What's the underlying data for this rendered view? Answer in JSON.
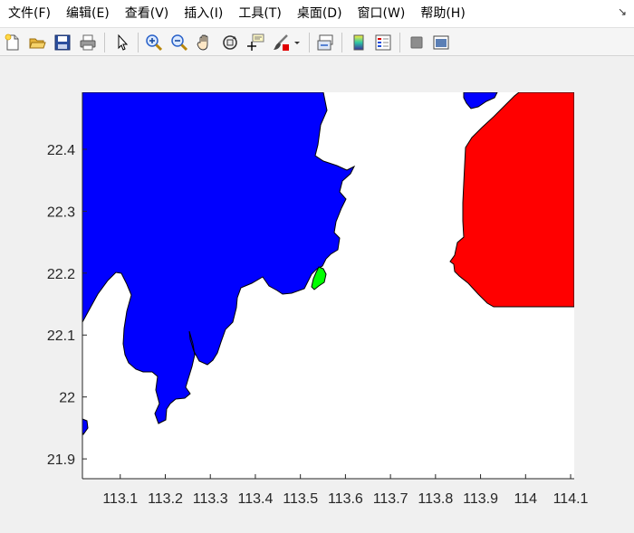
{
  "menu": {
    "items": [
      {
        "id": "file",
        "label": "文件(F)"
      },
      {
        "id": "edit",
        "label": "编辑(E)"
      },
      {
        "id": "view",
        "label": "查看(V)"
      },
      {
        "id": "insert",
        "label": "插入(I)"
      },
      {
        "id": "tools",
        "label": "工具(T)"
      },
      {
        "id": "desktop",
        "label": "桌面(D)"
      },
      {
        "id": "window",
        "label": "窗口(W)"
      },
      {
        "id": "help",
        "label": "帮助(H)"
      }
    ],
    "dock_arrow": "↘"
  },
  "toolbar": {
    "icons": [
      "new-figure-icon",
      "open-file-icon",
      "save-icon",
      "print-icon",
      "pointer-icon",
      "zoom-in-icon",
      "zoom-out-icon",
      "pan-hand-icon",
      "rotate-3d-icon",
      "data-cursor-icon",
      "brush-icon",
      "brush-dropdown-icon",
      "link-plot-icon",
      "colorbar-icon",
      "legend-icon",
      "hide-plot-tools-icon",
      "show-plot-tools-icon"
    ]
  },
  "chart_data": {
    "type": "map",
    "x_ticks": [
      "113.1",
      "113.2",
      "113.3",
      "113.4",
      "113.5",
      "113.6",
      "113.7",
      "113.8",
      "113.9",
      "114",
      "114.1"
    ],
    "x_tick_values": [
      113.1,
      113.2,
      113.3,
      113.4,
      113.5,
      113.6,
      113.7,
      113.8,
      113.9,
      114.0,
      114.1
    ],
    "y_ticks": [
      "21.9",
      "22",
      "22.1",
      "22.2",
      "22.3",
      "22.4"
    ],
    "y_tick_values": [
      21.9,
      22.0,
      22.1,
      22.2,
      22.3,
      22.4
    ],
    "xlim": [
      113.016,
      114.108
    ],
    "ylim": [
      21.868,
      22.492
    ],
    "background": "#ffffff",
    "regions": [
      {
        "id": "west-landmass",
        "color": "#0000ff"
      },
      {
        "id": "east-landmass",
        "color": "#ff0000"
      },
      {
        "id": "small-island",
        "color": "#00ff00"
      }
    ]
  }
}
